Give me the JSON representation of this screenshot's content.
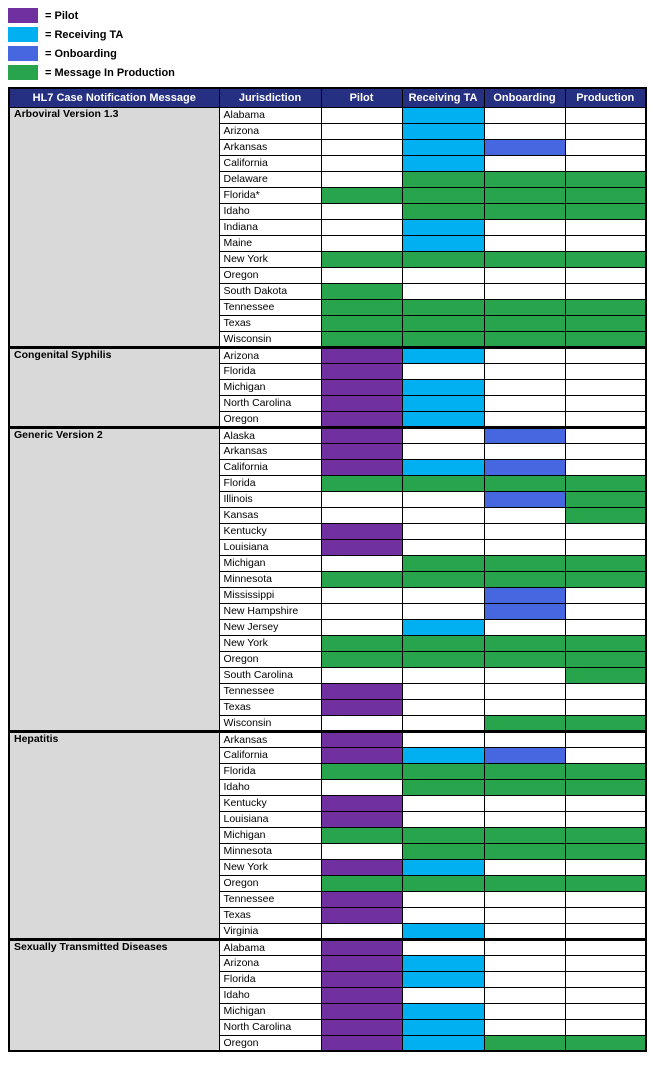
{
  "chart_data": {
    "type": "table",
    "title": "HL7 Case Notification Message",
    "legend": [
      {
        "label": "= Pilot",
        "key": "pilot"
      },
      {
        "label": "= Receiving TA",
        "key": "receiving_ta"
      },
      {
        "label": "= Onboarding",
        "key": "onboarding"
      },
      {
        "label": "= Message In Production",
        "key": "production"
      }
    ],
    "colors": {
      "pilot": "#7030A0",
      "receiving_ta": "#00B0F0",
      "onboarding": "#4667E0",
      "production": "#28A44D",
      "header_bg": "#253082",
      "header_text": "#FFFFFF",
      "section_bg": "#D9D9D9"
    },
    "columns": [
      "HL7 Case Notification Message",
      "Jurisdiction",
      "Pilot",
      "Receiving TA",
      "Onboarding",
      "Production"
    ],
    "sections": [
      {
        "name": "Arboviral Version 1.3",
        "rows": [
          {
            "jurisdiction": "Alabama",
            "statuses": [
              "none",
              "receiving_ta",
              "none",
              "none"
            ]
          },
          {
            "jurisdiction": "Arizona",
            "statuses": [
              "none",
              "receiving_ta",
              "none",
              "none"
            ]
          },
          {
            "jurisdiction": "Arkansas",
            "statuses": [
              "none",
              "receiving_ta",
              "onboarding",
              "none"
            ]
          },
          {
            "jurisdiction": "California",
            "statuses": [
              "none",
              "receiving_ta",
              "none",
              "none"
            ]
          },
          {
            "jurisdiction": "Delaware",
            "statuses": [
              "none",
              "production",
              "production",
              "production"
            ]
          },
          {
            "jurisdiction": "Florida*",
            "statuses": [
              "production",
              "production",
              "production",
              "production"
            ]
          },
          {
            "jurisdiction": "Idaho",
            "statuses": [
              "none",
              "production",
              "production",
              "production"
            ]
          },
          {
            "jurisdiction": "Indiana",
            "statuses": [
              "none",
              "receiving_ta",
              "none",
              "none"
            ]
          },
          {
            "jurisdiction": "Maine",
            "statuses": [
              "none",
              "receiving_ta",
              "none",
              "none"
            ]
          },
          {
            "jurisdiction": "New York",
            "statuses": [
              "production",
              "production",
              "production",
              "production"
            ]
          },
          {
            "jurisdiction": "Oregon",
            "statuses": [
              "none",
              "none",
              "none",
              "none"
            ]
          },
          {
            "jurisdiction": "South Dakota",
            "statuses": [
              "production",
              "none",
              "none",
              "none"
            ]
          },
          {
            "jurisdiction": "Tennessee",
            "statuses": [
              "production",
              "production",
              "production",
              "production"
            ]
          },
          {
            "jurisdiction": "Texas",
            "statuses": [
              "production",
              "production",
              "production",
              "production"
            ]
          },
          {
            "jurisdiction": "Wisconsin",
            "statuses": [
              "production",
              "production",
              "production",
              "production"
            ]
          }
        ]
      },
      {
        "name": "Congenital Syphilis",
        "rows": [
          {
            "jurisdiction": "Arizona",
            "statuses": [
              "pilot",
              "receiving_ta",
              "none",
              "none"
            ]
          },
          {
            "jurisdiction": "Florida",
            "statuses": [
              "pilot",
              "none",
              "none",
              "none"
            ]
          },
          {
            "jurisdiction": "Michigan",
            "statuses": [
              "pilot",
              "receiving_ta",
              "none",
              "none"
            ]
          },
          {
            "jurisdiction": "North Carolina",
            "statuses": [
              "pilot",
              "receiving_ta",
              "none",
              "none"
            ]
          },
          {
            "jurisdiction": "Oregon",
            "statuses": [
              "pilot",
              "receiving_ta",
              "none",
              "none"
            ]
          }
        ]
      },
      {
        "name": "Generic Version 2",
        "rows": [
          {
            "jurisdiction": "Alaska",
            "statuses": [
              "pilot",
              "none",
              "onboarding",
              "none"
            ]
          },
          {
            "jurisdiction": "Arkansas",
            "statuses": [
              "pilot",
              "none",
              "none",
              "none"
            ]
          },
          {
            "jurisdiction": "California",
            "statuses": [
              "pilot",
              "receiving_ta",
              "onboarding",
              "none"
            ]
          },
          {
            "jurisdiction": "Florida",
            "statuses": [
              "production",
              "production",
              "production",
              "production"
            ]
          },
          {
            "jurisdiction": "Illinois",
            "statuses": [
              "none",
              "none",
              "onboarding",
              "production"
            ]
          },
          {
            "jurisdiction": "Kansas",
            "statuses": [
              "none",
              "none",
              "none",
              "production"
            ]
          },
          {
            "jurisdiction": "Kentucky",
            "statuses": [
              "pilot",
              "none",
              "none",
              "none"
            ]
          },
          {
            "jurisdiction": "Louisiana",
            "statuses": [
              "pilot",
              "none",
              "none",
              "none"
            ]
          },
          {
            "jurisdiction": "Michigan",
            "statuses": [
              "none",
              "production",
              "production",
              "production"
            ]
          },
          {
            "jurisdiction": "Minnesota",
            "statuses": [
              "production",
              "production",
              "production",
              "production"
            ]
          },
          {
            "jurisdiction": "Mississippi",
            "statuses": [
              "none",
              "none",
              "onboarding",
              "none"
            ]
          },
          {
            "jurisdiction": "New Hampshire",
            "statuses": [
              "none",
              "none",
              "onboarding",
              "none"
            ]
          },
          {
            "jurisdiction": "New Jersey",
            "statuses": [
              "none",
              "receiving_ta",
              "none",
              "none"
            ]
          },
          {
            "jurisdiction": "New York",
            "statuses": [
              "production",
              "production",
              "production",
              "production"
            ]
          },
          {
            "jurisdiction": "Oregon",
            "statuses": [
              "production",
              "production",
              "production",
              "production"
            ]
          },
          {
            "jurisdiction": "South Carolina",
            "statuses": [
              "none",
              "none",
              "none",
              "production"
            ]
          },
          {
            "jurisdiction": "Tennessee",
            "statuses": [
              "pilot",
              "none",
              "none",
              "none"
            ]
          },
          {
            "jurisdiction": "Texas",
            "statuses": [
              "pilot",
              "none",
              "none",
              "none"
            ]
          },
          {
            "jurisdiction": "Wisconsin",
            "statuses": [
              "none",
              "none",
              "production",
              "production"
            ]
          }
        ]
      },
      {
        "name": "Hepatitis",
        "rows": [
          {
            "jurisdiction": "Arkansas",
            "statuses": [
              "pilot",
              "none",
              "none",
              "none"
            ]
          },
          {
            "jurisdiction": "California",
            "statuses": [
              "pilot",
              "receiving_ta",
              "onboarding",
              "none"
            ]
          },
          {
            "jurisdiction": "Florida",
            "statuses": [
              "production",
              "production",
              "production",
              "production"
            ]
          },
          {
            "jurisdiction": "Idaho",
            "statuses": [
              "none",
              "production",
              "production",
              "production"
            ]
          },
          {
            "jurisdiction": "Kentucky",
            "statuses": [
              "pilot",
              "none",
              "none",
              "none"
            ]
          },
          {
            "jurisdiction": "Louisiana",
            "statuses": [
              "pilot",
              "none",
              "none",
              "none"
            ]
          },
          {
            "jurisdiction": "Michigan",
            "statuses": [
              "production",
              "production",
              "production",
              "production"
            ]
          },
          {
            "jurisdiction": "Minnesota",
            "statuses": [
              "none",
              "production",
              "production",
              "production"
            ]
          },
          {
            "jurisdiction": "New York",
            "statuses": [
              "pilot",
              "receiving_ta",
              "none",
              "none"
            ]
          },
          {
            "jurisdiction": "Oregon",
            "statuses": [
              "production",
              "production",
              "production",
              "production"
            ]
          },
          {
            "jurisdiction": "Tennessee",
            "statuses": [
              "pilot",
              "none",
              "none",
              "none"
            ]
          },
          {
            "jurisdiction": "Texas",
            "statuses": [
              "pilot",
              "none",
              "none",
              "none"
            ]
          },
          {
            "jurisdiction": "Virginia",
            "statuses": [
              "none",
              "receiving_ta",
              "none",
              "none"
            ]
          }
        ]
      },
      {
        "name": "Sexually Transmitted Diseases",
        "rows": [
          {
            "jurisdiction": "Alabama",
            "statuses": [
              "pilot",
              "none",
              "none",
              "none"
            ]
          },
          {
            "jurisdiction": "Arizona",
            "statuses": [
              "pilot",
              "receiving_ta",
              "none",
              "none"
            ]
          },
          {
            "jurisdiction": "Florida",
            "statuses": [
              "pilot",
              "receiving_ta",
              "none",
              "none"
            ]
          },
          {
            "jurisdiction": "Idaho",
            "statuses": [
              "pilot",
              "none",
              "none",
              "none"
            ]
          },
          {
            "jurisdiction": "Michigan",
            "statuses": [
              "pilot",
              "receiving_ta",
              "none",
              "none"
            ]
          },
          {
            "jurisdiction": "North Carolina",
            "statuses": [
              "pilot",
              "receiving_ta",
              "none",
              "none"
            ]
          },
          {
            "jurisdiction": "Oregon",
            "statuses": [
              "pilot",
              "receiving_ta",
              "production",
              "production"
            ]
          }
        ]
      }
    ]
  }
}
